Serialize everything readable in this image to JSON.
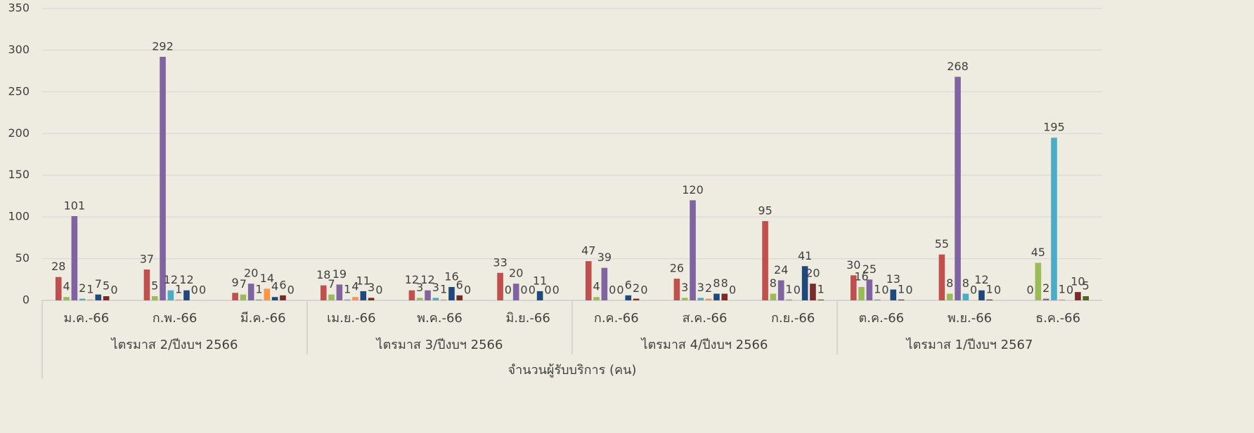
{
  "chart_data": {
    "type": "bar",
    "axis_title": "จำนวนผู้รับบริการ (คน)",
    "categories": [
      "ม.ค.-66",
      "ก.พ.-66",
      "มี.ค.-66",
      "เม.ย.-66",
      "พ.ค.-66",
      "มิ.ย.-66",
      "ก.ค.-66",
      "ส.ค.-66",
      "ก.ย.-66",
      "ต.ค.-66",
      "พ.ย.-66",
      "ธ.ค.-66"
    ],
    "category_groups": [
      "ไตรมาส 2/ปีงบฯ 2566",
      "ไตรมาส 3/ปีงบฯ 2566",
      "ไตรมาส 4/ปีงบฯ 2566",
      "ไตรมาส 1/ปีงบฯ 2567"
    ],
    "series": [
      {
        "color": "#c0504d",
        "values": [
          28,
          37,
          9,
          18,
          12,
          33,
          47,
          26,
          95,
          30,
          55,
          0
        ]
      },
      {
        "color": "#9bbb59",
        "values": [
          4,
          5,
          7,
          7,
          3,
          0,
          4,
          3,
          8,
          16,
          8,
          45
        ]
      },
      {
        "color": "#8064a2",
        "values": [
          101,
          292,
          20,
          19,
          12,
          20,
          39,
          120,
          24,
          25,
          268,
          2
        ]
      },
      {
        "color": "#4bacc6",
        "values": [
          2,
          12,
          1,
          1,
          3,
          0,
          0,
          3,
          1,
          1,
          8,
          195
        ]
      },
      {
        "color": "#f79646",
        "values": [
          1,
          1,
          14,
          4,
          1,
          0,
          0,
          2,
          0,
          0,
          0,
          1
        ]
      },
      {
        "color": "#1f497d",
        "values": [
          7,
          12,
          4,
          11,
          16,
          11,
          6,
          8,
          41,
          13,
          12,
          0
        ]
      },
      {
        "color": "#772c2a",
        "values": [
          5,
          0,
          6,
          3,
          6,
          0,
          2,
          8,
          20,
          1,
          1,
          10
        ]
      },
      {
        "color": "#4f6228",
        "values": [
          0,
          0,
          0,
          0,
          0,
          0,
          0,
          0,
          1,
          0,
          0,
          5
        ]
      }
    ],
    "ylim": [
      0,
      350
    ],
    "yticks": [
      0,
      50,
      100,
      150,
      200,
      250,
      300,
      350
    ],
    "grid": true
  }
}
